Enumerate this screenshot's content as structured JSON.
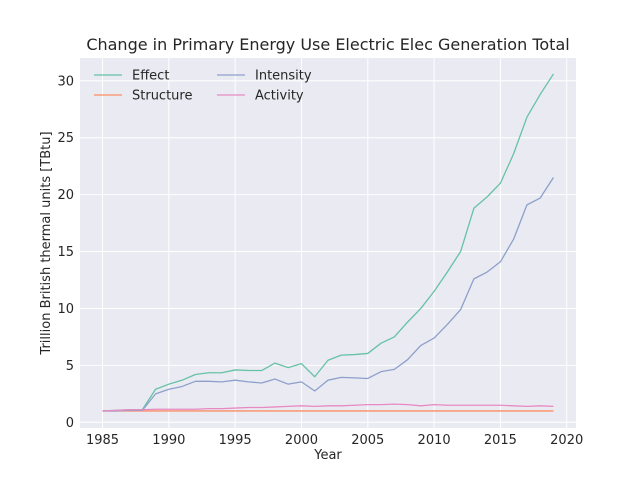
{
  "chart_data": {
    "type": "line",
    "title": "Change in Primary Energy Use Electric Elec Generation Total",
    "xlabel": "Year",
    "ylabel": "Trillion British thermal units [TBtu]",
    "xlim": [
      1983.3,
      2020.7
    ],
    "ylim": [
      -0.5,
      32.0
    ],
    "xticks": [
      1985,
      1990,
      1995,
      2000,
      2005,
      2010,
      2015,
      2020
    ],
    "yticks": [
      0,
      5,
      10,
      15,
      20,
      25,
      30
    ],
    "grid": true,
    "legend_position": "top-left",
    "x": [
      1985,
      1986,
      1987,
      1988,
      1989,
      1990,
      1991,
      1992,
      1993,
      1994,
      1995,
      1996,
      1997,
      1998,
      1999,
      2000,
      2001,
      2002,
      2003,
      2004,
      2005,
      2006,
      2007,
      2008,
      2009,
      2010,
      2011,
      2012,
      2013,
      2014,
      2015,
      2016,
      2017,
      2018,
      2019
    ],
    "series": [
      {
        "name": "Effect",
        "color": "#66c2a5",
        "values": [
          1.0,
          1.05,
          1.1,
          1.1,
          2.9,
          3.35,
          3.7,
          4.2,
          4.35,
          4.35,
          4.6,
          4.55,
          4.55,
          5.2,
          4.8,
          5.15,
          4.0,
          5.45,
          5.9,
          5.95,
          6.05,
          6.95,
          7.5,
          8.8,
          10.0,
          11.5,
          13.2,
          15.0,
          18.8,
          19.8,
          21.0,
          23.6,
          26.8,
          28.8,
          30.6
        ]
      },
      {
        "name": "Structure",
        "color": "#fc8d62",
        "values": [
          1.0,
          1.0,
          1.0,
          1.0,
          1.0,
          1.0,
          1.0,
          1.0,
          1.0,
          1.0,
          1.0,
          1.0,
          1.0,
          1.0,
          1.0,
          1.0,
          1.0,
          1.0,
          1.0,
          1.0,
          1.0,
          1.0,
          1.0,
          1.0,
          1.0,
          1.0,
          1.0,
          1.0,
          1.0,
          1.0,
          1.0,
          1.0,
          1.0,
          1.0,
          1.0
        ]
      },
      {
        "name": "Intensity",
        "color": "#8da0cb",
        "values": [
          1.0,
          1.0,
          1.05,
          1.05,
          2.5,
          2.9,
          3.15,
          3.6,
          3.6,
          3.55,
          3.7,
          3.55,
          3.45,
          3.8,
          3.35,
          3.55,
          2.75,
          3.7,
          3.95,
          3.9,
          3.85,
          4.45,
          4.65,
          5.5,
          6.75,
          7.4,
          8.6,
          9.9,
          12.6,
          13.2,
          14.1,
          16.1,
          19.1,
          19.7,
          21.5
        ]
      },
      {
        "name": "Activity",
        "color": "#e78ac3",
        "values": [
          1.0,
          1.05,
          1.1,
          1.1,
          1.15,
          1.15,
          1.15,
          1.15,
          1.2,
          1.2,
          1.25,
          1.3,
          1.3,
          1.35,
          1.4,
          1.45,
          1.4,
          1.45,
          1.45,
          1.5,
          1.55,
          1.55,
          1.6,
          1.55,
          1.45,
          1.55,
          1.5,
          1.5,
          1.5,
          1.5,
          1.5,
          1.45,
          1.4,
          1.45,
          1.4
        ]
      }
    ]
  }
}
